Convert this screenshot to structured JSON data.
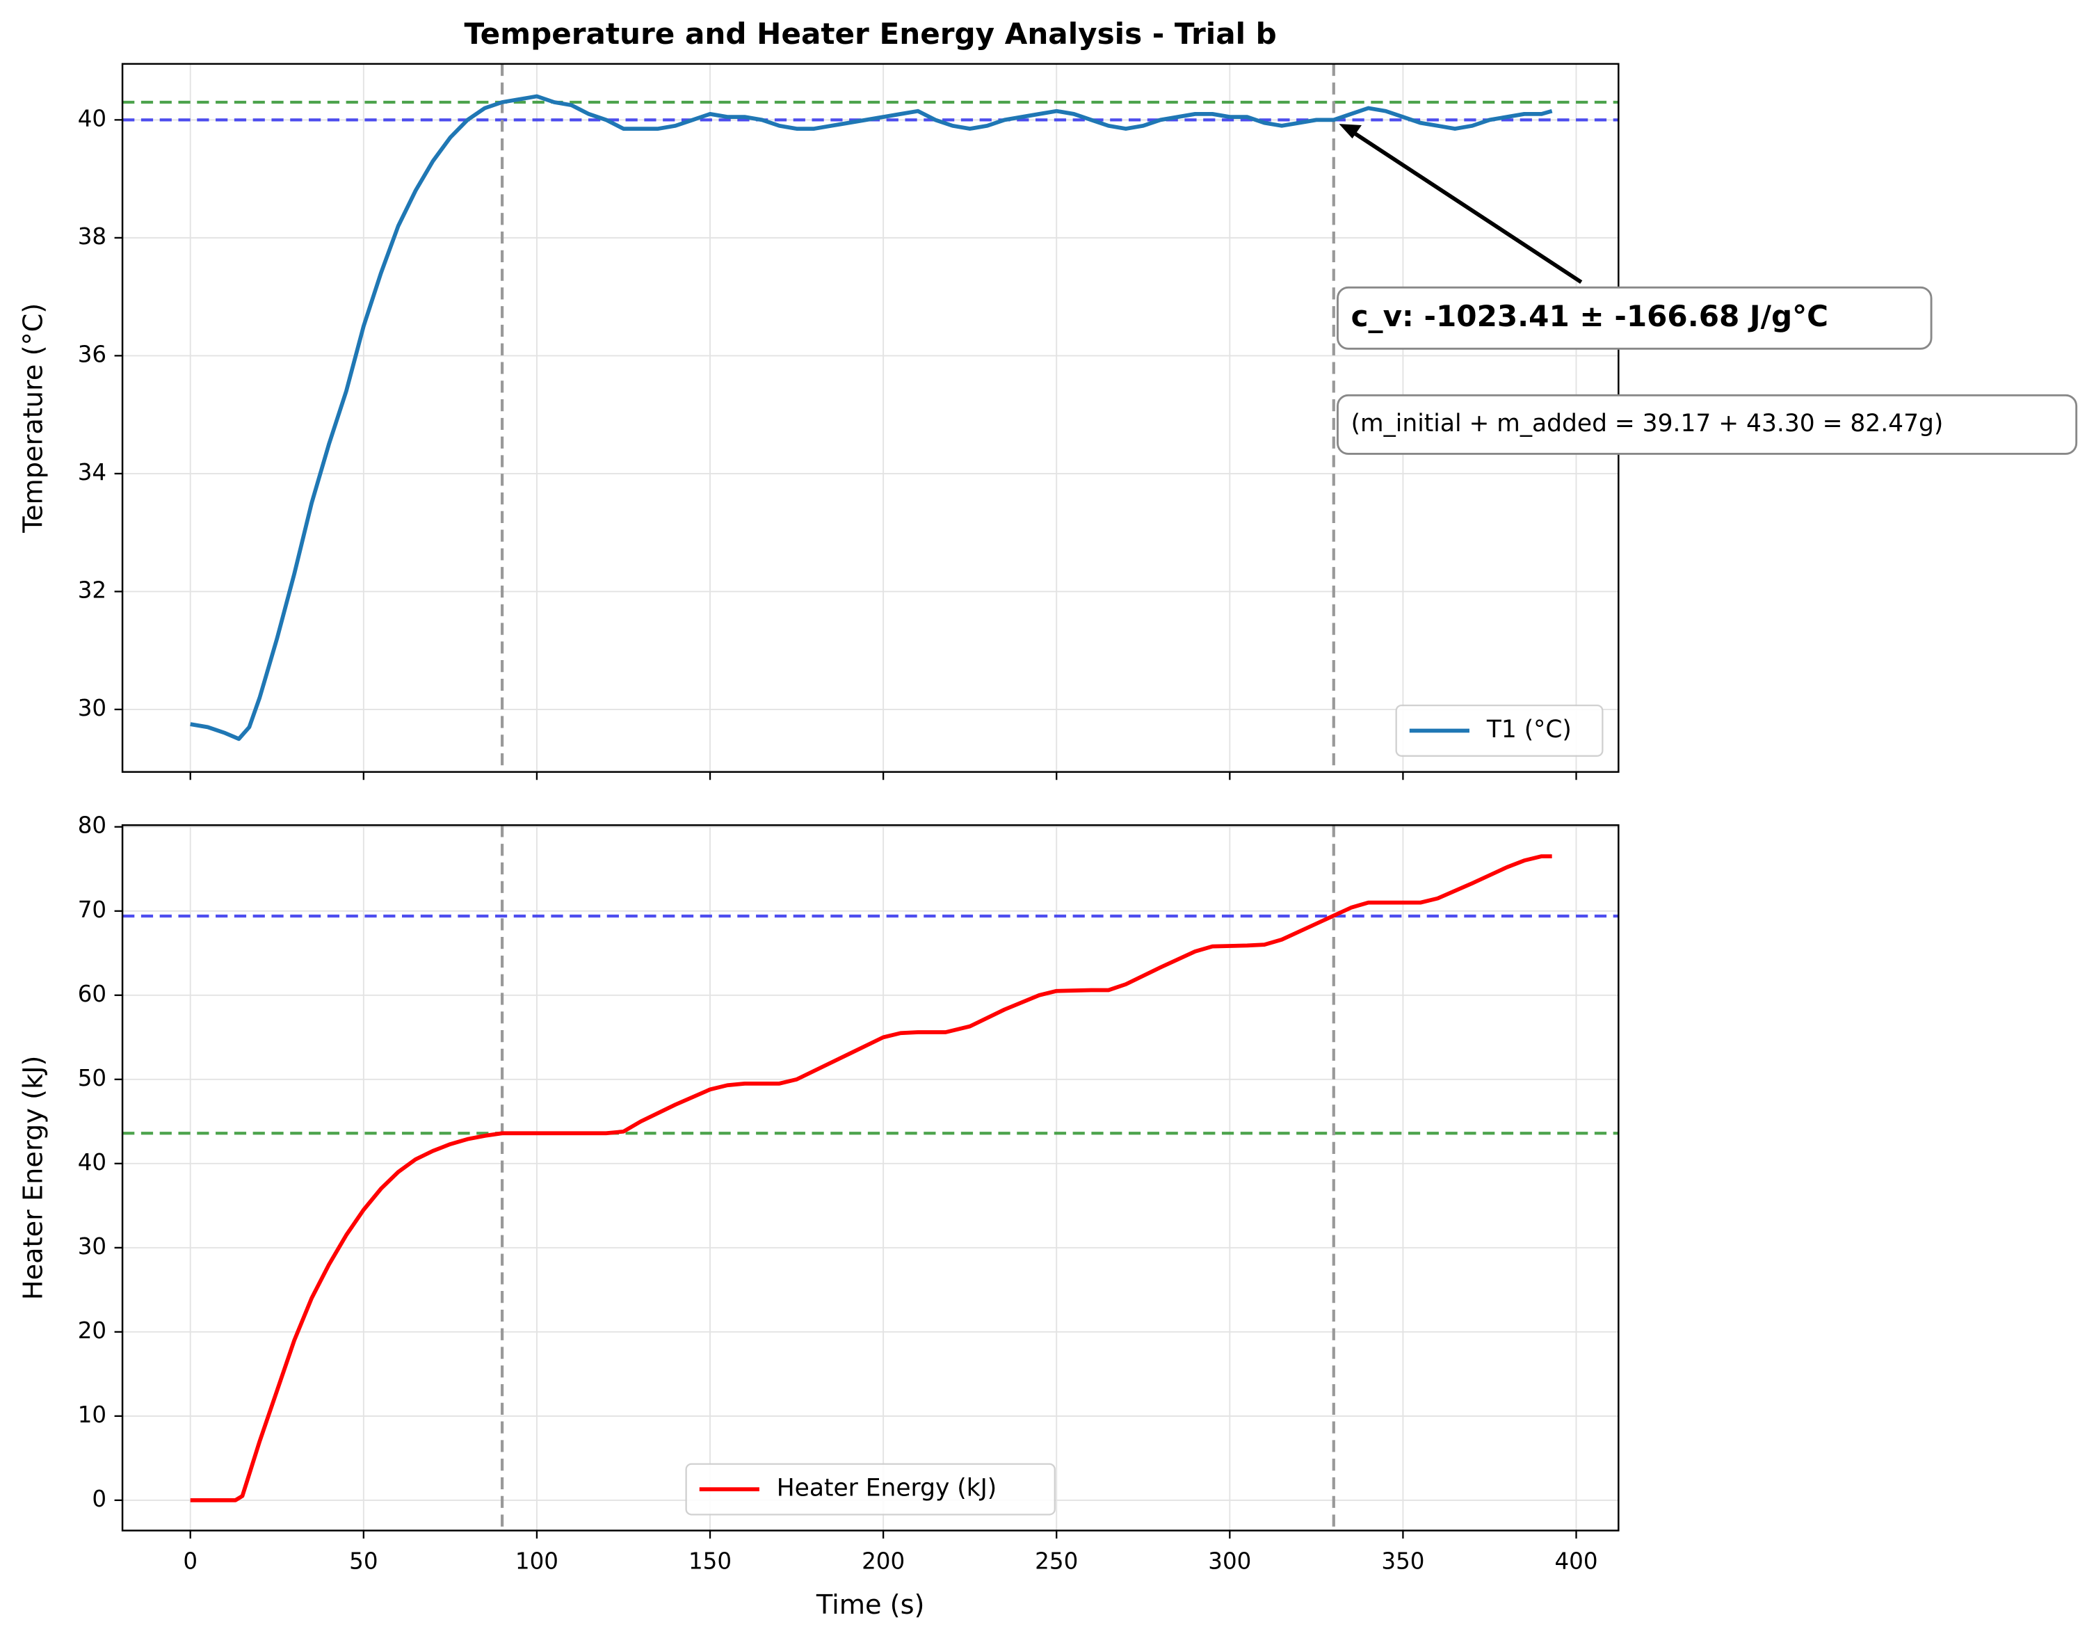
{
  "chart_data": [
    {
      "type": "line",
      "title": "Temperature and Heater Energy Analysis - Trial b",
      "ylabel": "Temperature (°C)",
      "x": [
        0,
        5,
        10,
        14,
        17,
        20,
        25,
        30,
        35,
        40,
        45,
        50,
        55,
        60,
        65,
        70,
        75,
        80,
        85,
        90,
        95,
        100,
        105,
        110,
        115,
        120,
        125,
        130,
        135,
        140,
        145,
        150,
        155,
        160,
        165,
        170,
        175,
        180,
        185,
        190,
        195,
        200,
        205,
        210,
        215,
        220,
        225,
        230,
        235,
        240,
        245,
        250,
        255,
        260,
        265,
        270,
        275,
        280,
        285,
        290,
        295,
        300,
        305,
        310,
        315,
        320,
        325,
        330,
        335,
        340,
        345,
        350,
        355,
        360,
        365,
        370,
        375,
        380,
        385,
        390,
        393
      ],
      "series": [
        {
          "name": "T1 (°C)",
          "color": "#1f77b4",
          "values": [
            29.75,
            29.7,
            29.6,
            29.5,
            29.7,
            30.2,
            31.2,
            32.3,
            33.5,
            34.5,
            35.4,
            36.5,
            37.4,
            38.2,
            38.8,
            39.3,
            39.7,
            40.0,
            40.2,
            40.3,
            40.35,
            40.4,
            40.3,
            40.25,
            40.1,
            40.0,
            39.85,
            39.85,
            39.85,
            39.9,
            40.0,
            40.1,
            40.05,
            40.05,
            40.0,
            39.9,
            39.85,
            39.85,
            39.9,
            39.95,
            40.0,
            40.05,
            40.1,
            40.15,
            40.0,
            39.9,
            39.85,
            39.9,
            40.0,
            40.05,
            40.1,
            40.15,
            40.1,
            40.0,
            39.9,
            39.85,
            39.9,
            40.0,
            40.05,
            40.1,
            40.1,
            40.05,
            40.05,
            39.95,
            39.9,
            39.95,
            40.0,
            40.0,
            40.1,
            40.2,
            40.15,
            40.05,
            39.95,
            39.9,
            39.85,
            39.9,
            40.0,
            40.05,
            40.1,
            40.1,
            40.15
          ]
        }
      ],
      "hlines": [
        {
          "value": 40.3,
          "color": "#3a9a3a"
        },
        {
          "value": 40.0,
          "color": "#3b3bee"
        }
      ],
      "vlines": [
        90,
        330
      ],
      "xlim": [
        -19.6,
        412.2
      ],
      "ylim": [
        28.94,
        40.95
      ],
      "xticks": [
        0,
        50,
        100,
        150,
        200,
        250,
        300,
        350,
        400
      ],
      "yticks": [
        30,
        32,
        34,
        36,
        38,
        40
      ],
      "grid": true,
      "legend": "lower right",
      "annotations": [
        {
          "text": "c_v: -1023.41 ± -166.68 J/g°C",
          "xy": [
            330,
            40.0
          ]
        },
        {
          "text": "(m_initial + m_added = 39.17 + 43.30 = 82.47g)"
        }
      ]
    },
    {
      "type": "line",
      "xlabel": "Time (s)",
      "ylabel": "Heater Energy (kJ)",
      "x": [
        0,
        5,
        10,
        13,
        15,
        20,
        25,
        30,
        35,
        40,
        45,
        50,
        55,
        60,
        65,
        70,
        75,
        80,
        85,
        90,
        100,
        110,
        120,
        125,
        130,
        140,
        150,
        155,
        160,
        170,
        175,
        180,
        190,
        200,
        205,
        210,
        218,
        225,
        235,
        245,
        250,
        260,
        265,
        270,
        280,
        290,
        295,
        305,
        310,
        315,
        325,
        335,
        340,
        350,
        355,
        360,
        370,
        380,
        385,
        390,
        393
      ],
      "series": [
        {
          "name": "Heater Energy (kJ)",
          "color": "#ff0000",
          "values": [
            0,
            0,
            0,
            0,
            0.5,
            7,
            13,
            19,
            24,
            28,
            31.5,
            34.5,
            37,
            39,
            40.5,
            41.5,
            42.3,
            42.9,
            43.3,
            43.6,
            43.6,
            43.6,
            43.6,
            43.8,
            45,
            47,
            48.8,
            49.3,
            49.5,
            49.5,
            50,
            51,
            53,
            55,
            55.5,
            55.6,
            55.6,
            56.3,
            58.3,
            60,
            60.5,
            60.6,
            60.6,
            61.3,
            63.3,
            65.2,
            65.8,
            65.9,
            66,
            66.6,
            68.5,
            70.4,
            71,
            71,
            71,
            71.5,
            73.3,
            75.2,
            76,
            76.5,
            76.5
          ]
        }
      ],
      "hlines": [
        {
          "value": 69.4,
          "color": "#3b3bee"
        },
        {
          "value": 43.6,
          "color": "#3a9a3a"
        }
      ],
      "vlines": [
        90,
        330
      ],
      "xlim": [
        -19.6,
        412.2
      ],
      "ylim": [
        -3.6,
        80.2
      ],
      "xticks": [
        0,
        50,
        100,
        150,
        200,
        250,
        300,
        350,
        400
      ],
      "yticks": [
        0,
        10,
        20,
        30,
        40,
        50,
        60,
        70,
        80
      ],
      "grid": true,
      "legend": "lower center"
    }
  ]
}
